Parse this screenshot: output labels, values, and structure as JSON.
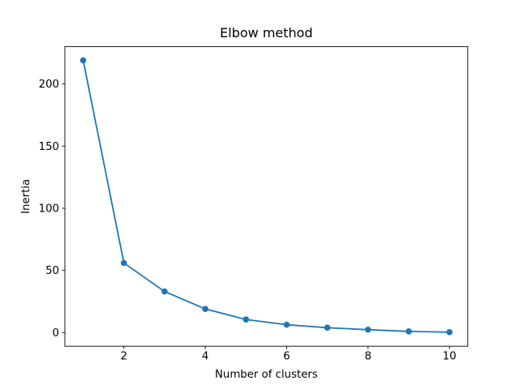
{
  "figure": {
    "background_color": "#ffffff",
    "spine_color": "#000000",
    "text_color": "#000000"
  },
  "chart_data": {
    "type": "line",
    "title": "Elbow method",
    "xlabel": "Number of clusters",
    "ylabel": "Inertia",
    "x": [
      1,
      2,
      3,
      4,
      5,
      6,
      7,
      8,
      9,
      10
    ],
    "series": [
      {
        "name": "inertia",
        "values": [
          219,
          56,
          33,
          19,
          10.5,
          6.3,
          3.9,
          2.3,
          0.9,
          0.3
        ],
        "color": "#1f77b4",
        "marker": "circle"
      }
    ],
    "xticks": [
      2,
      4,
      6,
      8,
      10
    ],
    "yticks": [
      0,
      50,
      100,
      150,
      200
    ],
    "xlim": [
      0.55,
      10.45
    ],
    "ylim": [
      -11,
      230
    ],
    "grid": false
  }
}
